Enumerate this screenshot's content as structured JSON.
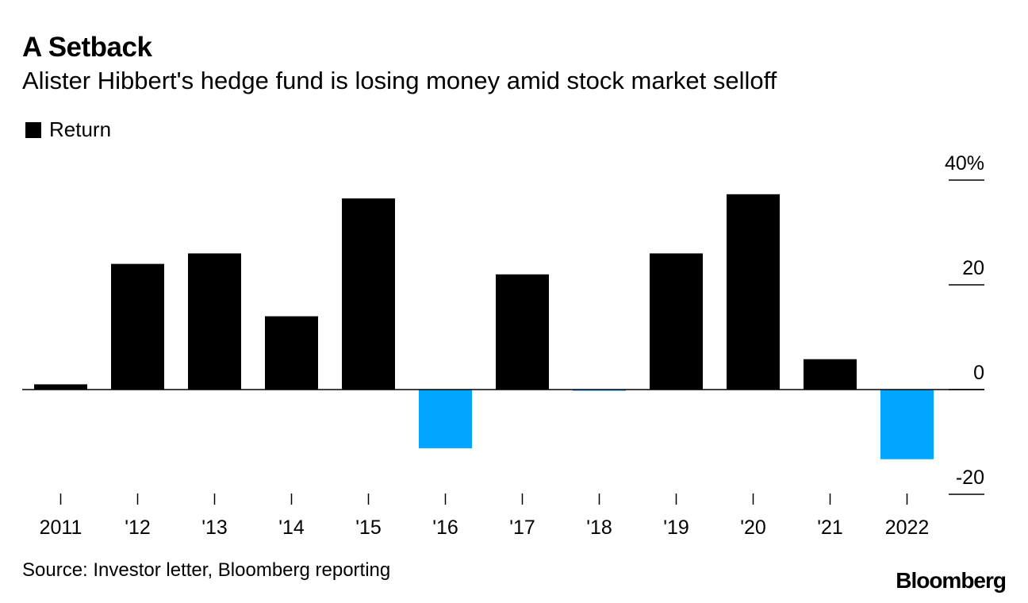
{
  "chart_data": {
    "type": "bar",
    "title": "A Setback",
    "subtitle": "Alister Hibbert's hedge fund is losing money amid stock market selloff",
    "categories": [
      "2011",
      "'12",
      "'13",
      "'14",
      "'15",
      "'16",
      "'17",
      "'18",
      "'19",
      "'20",
      "'21",
      "2022"
    ],
    "series": [
      {
        "name": "Return",
        "values": [
          1,
          24,
          26,
          14,
          36.5,
          -11.2,
          22,
          -0.2,
          26,
          37.3,
          5.8,
          -13.3
        ]
      }
    ],
    "ylim": [
      -20,
      40
    ],
    "yticks": [
      -20,
      0,
      20,
      40
    ],
    "ytick_labels": [
      "-20",
      "0",
      "20",
      "40%"
    ],
    "xlabel": "",
    "ylabel": "",
    "legend": {
      "label": "Return",
      "position": "top-left"
    },
    "colors": {
      "positive": "#000000",
      "negative": "#00a6ff"
    },
    "source": "Source: Investor letter, Bloomberg reporting",
    "brand": "Bloomberg"
  }
}
